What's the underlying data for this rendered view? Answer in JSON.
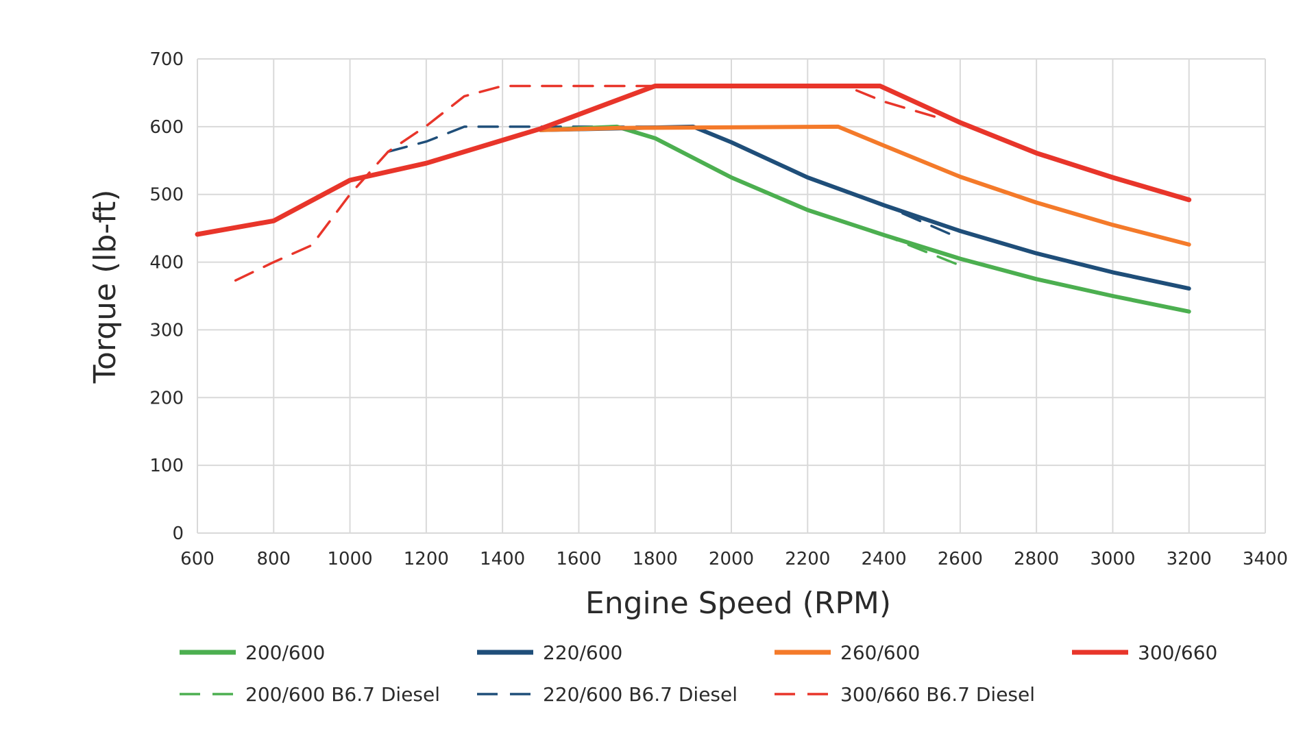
{
  "chart_data": {
    "type": "line",
    "title": "",
    "xlabel": "Engine Speed (RPM)",
    "ylabel": "Torque (lb-ft)",
    "xlim": [
      600,
      3400
    ],
    "ylim": [
      0,
      700
    ],
    "xticks": [
      600,
      800,
      1000,
      1200,
      1400,
      1600,
      1800,
      2000,
      2200,
      2400,
      2600,
      2800,
      3000,
      3200,
      3400
    ],
    "yticks": [
      0,
      100,
      200,
      300,
      400,
      500,
      600,
      700
    ],
    "grid": true,
    "legend_position": "bottom",
    "series": [
      {
        "name": "200/600",
        "color": "#4caf50",
        "style": "solid",
        "points": [
          [
            1500,
            595
          ],
          [
            1700,
            600
          ],
          [
            1800,
            583
          ],
          [
            2000,
            525
          ],
          [
            2200,
            477
          ],
          [
            2400,
            440
          ],
          [
            2600,
            405
          ],
          [
            2800,
            375
          ],
          [
            3000,
            350
          ],
          [
            3200,
            327
          ]
        ]
      },
      {
        "name": "220/600",
        "color": "#1f4e79",
        "style": "solid",
        "points": [
          [
            1500,
            595
          ],
          [
            1900,
            600
          ],
          [
            2000,
            577
          ],
          [
            2200,
            525
          ],
          [
            2400,
            484
          ],
          [
            2600,
            446
          ],
          [
            2800,
            413
          ],
          [
            3000,
            385
          ],
          [
            3200,
            361
          ]
        ]
      },
      {
        "name": "260/600",
        "color": "#f47a2a",
        "style": "solid",
        "points": [
          [
            1500,
            595
          ],
          [
            1700,
            598
          ],
          [
            2280,
            600
          ],
          [
            2400,
            572
          ],
          [
            2600,
            526
          ],
          [
            2800,
            488
          ],
          [
            3000,
            455
          ],
          [
            3200,
            426
          ]
        ]
      },
      {
        "name": "300/660",
        "color": "#e8352a",
        "style": "solid",
        "points": [
          [
            600,
            441
          ],
          [
            800,
            461
          ],
          [
            1000,
            521
          ],
          [
            1200,
            546
          ],
          [
            1400,
            580
          ],
          [
            1500,
            597
          ],
          [
            1800,
            660
          ],
          [
            2390,
            660
          ],
          [
            2600,
            606
          ],
          [
            2800,
            561
          ],
          [
            3000,
            525
          ],
          [
            3200,
            492
          ]
        ]
      },
      {
        "name": "200/600 B6.7 Diesel",
        "color": "#4caf50",
        "style": "dashed",
        "points": [
          [
            1700,
            600
          ],
          [
            1800,
            583
          ],
          [
            2000,
            525
          ],
          [
            2200,
            477
          ],
          [
            2400,
            440
          ],
          [
            2600,
            395
          ]
        ]
      },
      {
        "name": "220/600 B6.7 Diesel",
        "color": "#1f4e79",
        "style": "dashed",
        "points": [
          [
            1100,
            563
          ],
          [
            1200,
            578
          ],
          [
            1300,
            600
          ],
          [
            1900,
            600
          ],
          [
            2000,
            577
          ],
          [
            2200,
            525
          ],
          [
            2400,
            484
          ],
          [
            2600,
            435
          ]
        ]
      },
      {
        "name": "300/660 B6.7 Diesel",
        "color": "#e8352a",
        "style": "dashed",
        "points": [
          [
            700,
            373
          ],
          [
            800,
            400
          ],
          [
            900,
            425
          ],
          [
            1000,
            500
          ],
          [
            1100,
            563
          ],
          [
            1200,
            601
          ],
          [
            1300,
            645
          ],
          [
            1400,
            660
          ],
          [
            2300,
            660
          ],
          [
            2400,
            637
          ],
          [
            2550,
            612
          ]
        ]
      }
    ]
  }
}
